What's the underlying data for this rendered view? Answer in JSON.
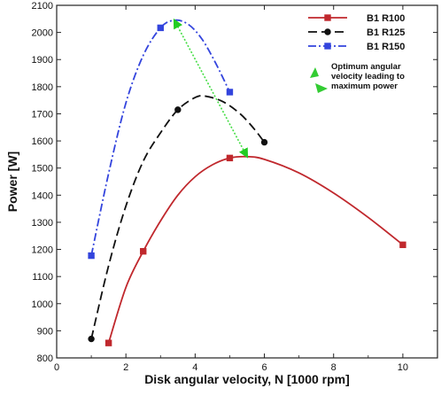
{
  "chart_data": {
    "type": "line",
    "xlabel": "Disk angular velocity, N [1000 rpm]",
    "ylabel": "Power [W]",
    "xlim": [
      0,
      11
    ],
    "ylim": [
      800,
      2100
    ],
    "x_ticks": [
      0,
      2,
      4,
      6,
      8,
      10
    ],
    "y_ticks": [
      800,
      900,
      1000,
      1100,
      1200,
      1300,
      1400,
      1500,
      1600,
      1700,
      1800,
      1900,
      2000,
      2100
    ],
    "grid": false,
    "legend_position": "top-right",
    "series": [
      {
        "name": "B1 R100",
        "color": "#c0282d",
        "line_style": "solid",
        "marker": "square",
        "points": [
          [
            1.5,
            855
          ],
          [
            2.5,
            1193
          ],
          [
            5,
            1537
          ],
          [
            10,
            1217
          ]
        ],
        "curve": [
          [
            1.5,
            855
          ],
          [
            2.0,
            1060
          ],
          [
            2.5,
            1193
          ],
          [
            3.0,
            1305
          ],
          [
            3.5,
            1400
          ],
          [
            4.0,
            1468
          ],
          [
            4.5,
            1512
          ],
          [
            5.0,
            1537
          ],
          [
            5.5,
            1542
          ],
          [
            6.0,
            1532
          ],
          [
            7.0,
            1482
          ],
          [
            8.0,
            1408
          ],
          [
            9.0,
            1318
          ],
          [
            10.0,
            1217
          ]
        ]
      },
      {
        "name": "B1 R125",
        "color": "#111111",
        "line_style": "dash",
        "marker": "circle",
        "points": [
          [
            1,
            870
          ],
          [
            3.5,
            1715
          ],
          [
            6,
            1595
          ]
        ],
        "curve": [
          [
            1.0,
            870
          ],
          [
            1.5,
            1140
          ],
          [
            2.0,
            1360
          ],
          [
            2.5,
            1525
          ],
          [
            3.0,
            1630
          ],
          [
            3.5,
            1715
          ],
          [
            4.0,
            1760
          ],
          [
            4.3,
            1765
          ],
          [
            4.8,
            1745
          ],
          [
            5.3,
            1700
          ],
          [
            5.7,
            1645
          ],
          [
            6.0,
            1595
          ]
        ]
      },
      {
        "name": "B1 R150",
        "color": "#3344dd",
        "line_style": "dashdot",
        "marker": "square",
        "points": [
          [
            1,
            1177
          ],
          [
            3,
            2017
          ],
          [
            5,
            1780
          ]
        ],
        "curve": [
          [
            1.0,
            1177
          ],
          [
            1.5,
            1480
          ],
          [
            2.0,
            1740
          ],
          [
            2.5,
            1915
          ],
          [
            3.0,
            2017
          ],
          [
            3.4,
            2045
          ],
          [
            3.8,
            2030
          ],
          [
            4.2,
            1975
          ],
          [
            4.6,
            1885
          ],
          [
            5.0,
            1780
          ]
        ]
      }
    ],
    "optimum_arrow": {
      "color": "#33dd33",
      "from": [
        3.4,
        2045
      ],
      "to": [
        5.5,
        1542
      ]
    },
    "annotation": {
      "lines": [
        "Optimum angular",
        "velocity leading to",
        "maximum power"
      ]
    }
  }
}
